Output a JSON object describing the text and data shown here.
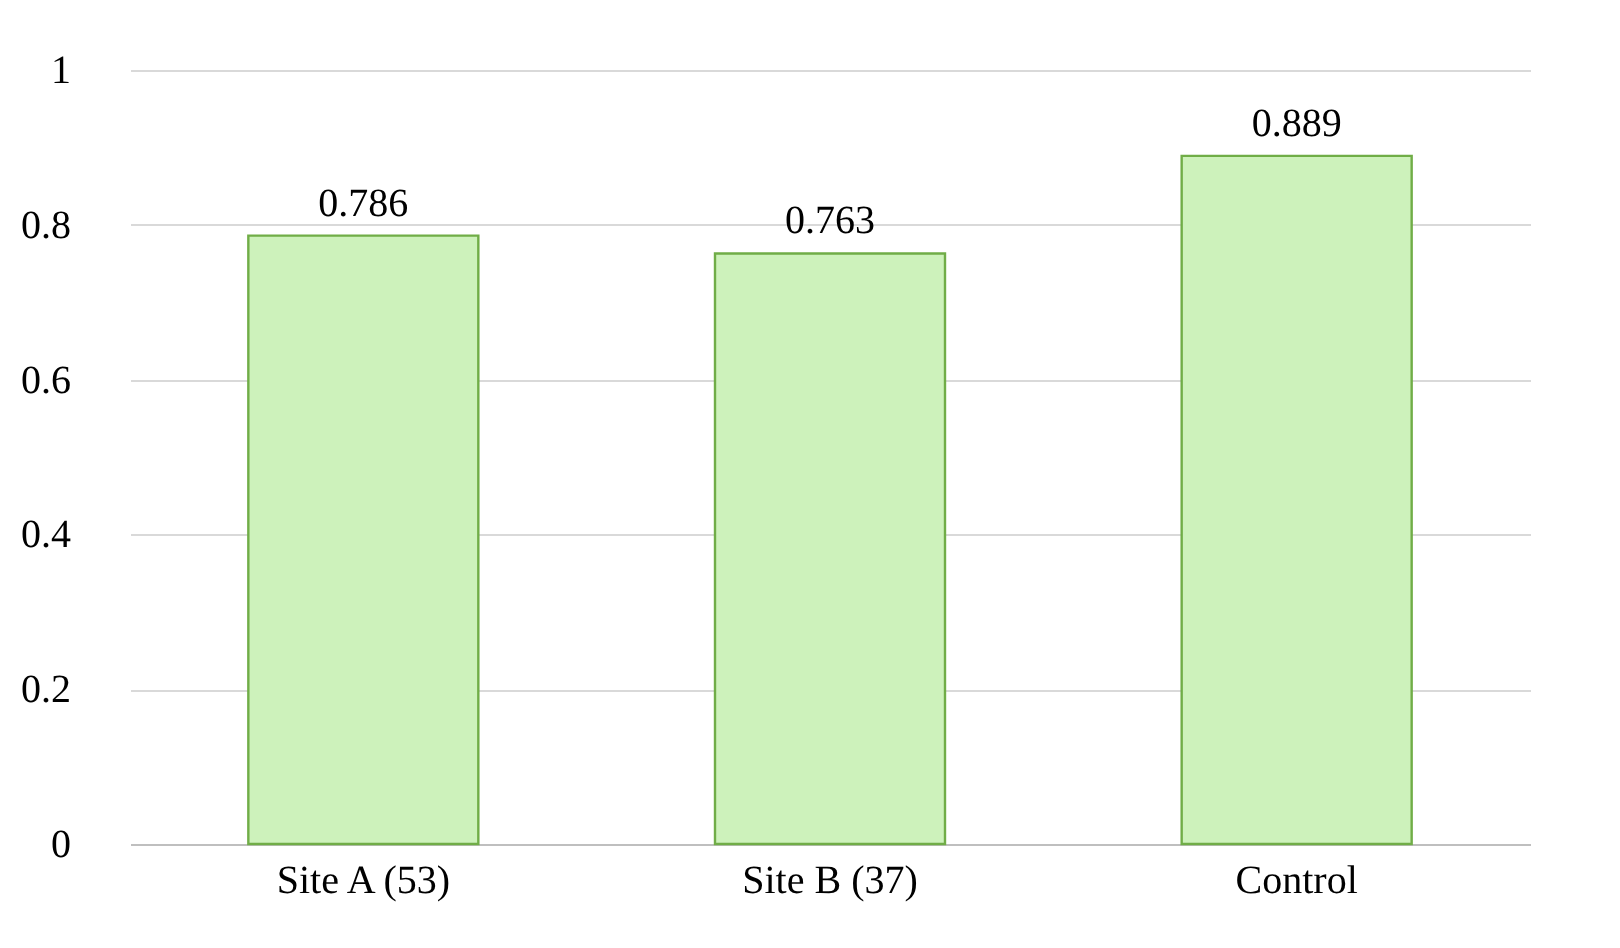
{
  "chart_data": {
    "type": "bar",
    "categories": [
      "Site A (53)",
      "Site B (37)",
      "Control"
    ],
    "values": [
      0.786,
      0.763,
      0.889
    ],
    "color": "#cdf2bb",
    "ylim": [
      0,
      1
    ],
    "yticks": [
      0,
      0.2,
      0.4,
      0.6,
      0.8,
      1
    ],
    "grid": "y",
    "data_labels": true
  }
}
